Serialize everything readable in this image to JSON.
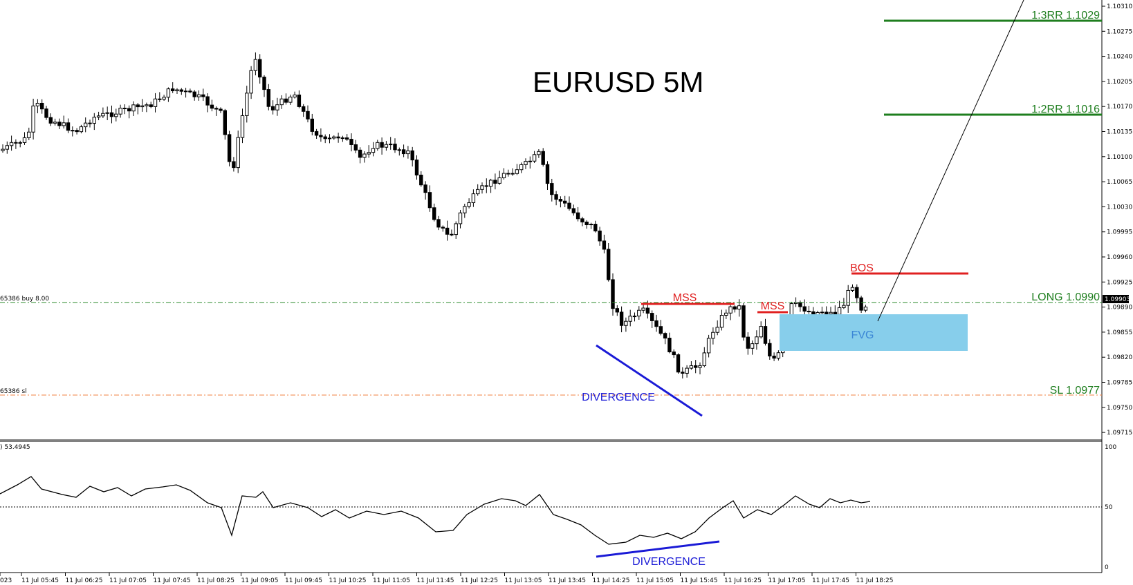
{
  "chart_data": {
    "type": "candlestick",
    "title": "EURUSD 5M",
    "price_axis": {
      "range": [
        1.097,
        1.1033
      ],
      "ticks": [
        "1.10310",
        "1.10275",
        "1.10240",
        "1.10205",
        "1.10170",
        "1.10135",
        "1.10100",
        "1.10065",
        "1.10030",
        "1.09995",
        "1.09960",
        "1.09925",
        "1.09890",
        "1.09855",
        "1.09820",
        "1.09785",
        "1.09750",
        "1.09715"
      ],
      "current_price": "1.09903"
    },
    "time_axis": {
      "ticks": [
        "023",
        "11 Jul 05:45",
        "11 Jul 06:25",
        "11 Jul 07:05",
        "11 Jul 07:45",
        "11 Jul 08:25",
        "11 Jul 09:05",
        "11 Jul 09:45",
        "11 Jul 10:25",
        "11 Jul 11:05",
        "11 Jul 11:45",
        "11 Jul 12:25",
        "11 Jul 13:05",
        "11 Jul 13:45",
        "11 Jul 14:25",
        "11 Jul 15:05",
        "11 Jul 15:45",
        "11 Jul 16:25",
        "11 Jul 17:05",
        "11 Jul 17:45",
        "11 Jul 18:25"
      ]
    },
    "levels": [
      {
        "label": "1:3RR 1.1029",
        "price": 1.1029,
        "color": "#1e7e1e"
      },
      {
        "label": "1:2RR 1.1016",
        "price": 1.1016,
        "color": "#1e7e1e"
      },
      {
        "label": "LONG 1.0990",
        "price": 1.099,
        "color": "#1e7e1e"
      },
      {
        "label": "SL 1.0977",
        "price": 1.0977,
        "color": "#1e7e1e"
      }
    ],
    "order_lines": {
      "buy_label": "65386 buy 8.00",
      "sl_label": "65386 sl"
    },
    "annotations": {
      "bos": "BOS",
      "mss_1": "MSS",
      "mss_2": "MSS",
      "fvg": "FVG",
      "divergence_price": "DIVERGENCE",
      "divergence_osc": "DIVERGENCE"
    },
    "oscillator": {
      "label": ") 53.4945",
      "range": [
        0,
        100
      ],
      "ticks": [
        "100",
        "50",
        "0"
      ],
      "level": 50
    },
    "colors": {
      "annotation_red": "#e02020",
      "annotation_blue": "#1a1ad6",
      "fvg_fill": "#87ceeb",
      "fvg_text": "#3a86d6",
      "level_green": "#1e7e1e",
      "sl_orange": "#f08040"
    }
  }
}
